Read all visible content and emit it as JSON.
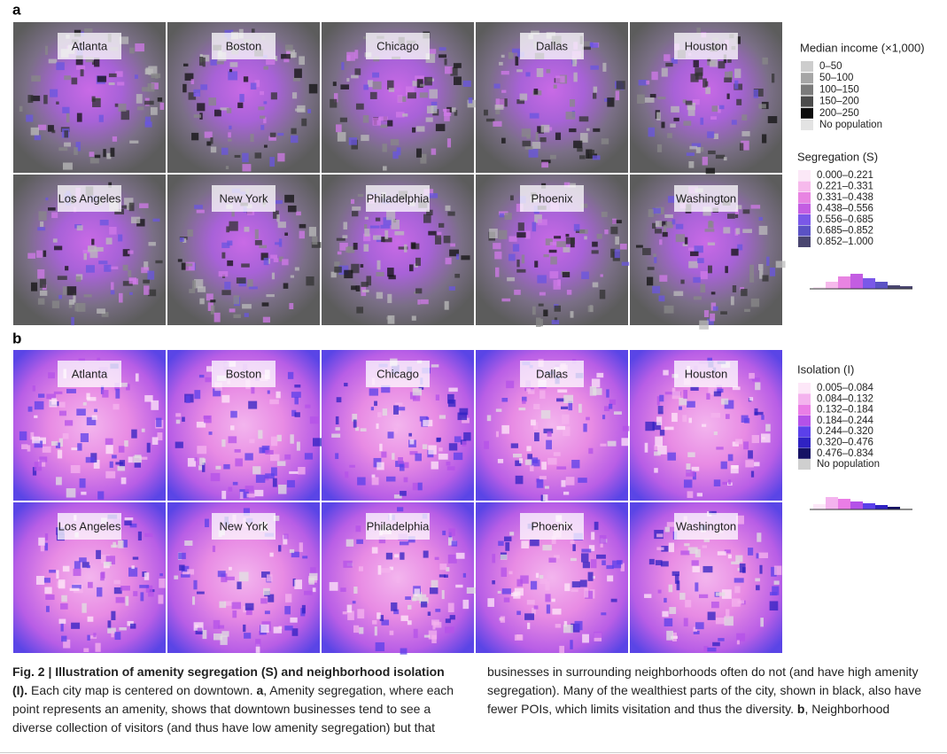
{
  "panel_a": {
    "label": "a",
    "cities": [
      "Atlanta",
      "Boston",
      "Chicago",
      "Dallas",
      "Houston",
      "Los Angeles",
      "New York",
      "Philadelphia",
      "Phoenix",
      "Washington"
    ],
    "income_legend": {
      "title": "Median income (×1,000)",
      "items": [
        {
          "label": "0–50",
          "color": "#cdcdcd"
        },
        {
          "label": "50–100",
          "color": "#a6a6a6"
        },
        {
          "label": "100–150",
          "color": "#7b7b7b"
        },
        {
          "label": "150–200",
          "color": "#4b4b4b"
        },
        {
          "label": "200–250",
          "color": "#0d0d0d"
        },
        {
          "label": "No population",
          "color": "#e3e3e3"
        }
      ]
    },
    "segregation_legend": {
      "title": "Segregation (S)",
      "items": [
        {
          "label": "0.000–0.221",
          "color": "#fbe8f7"
        },
        {
          "label": "0.221–0.331",
          "color": "#f6b9ec"
        },
        {
          "label": "0.331–0.438",
          "color": "#e884e2"
        },
        {
          "label": "0.438–0.556",
          "color": "#c35de2"
        },
        {
          "label": "0.556–0.685",
          "color": "#7a58e8"
        },
        {
          "label": "0.685–0.852",
          "color": "#5b52c4"
        },
        {
          "label": "0.852–1.000",
          "color": "#4a4670"
        }
      ]
    }
  },
  "panel_b": {
    "label": "b",
    "cities": [
      "Atlanta",
      "Boston",
      "Chicago",
      "Dallas",
      "Houston",
      "Los Angeles",
      "New York",
      "Philadelphia",
      "Phoenix",
      "Washington"
    ],
    "isolation_legend": {
      "title": "Isolation (I)",
      "items": [
        {
          "label": "0.005–0.084",
          "color": "#fde7f8"
        },
        {
          "label": "0.084–0.132",
          "color": "#f4b3ee"
        },
        {
          "label": "0.132–0.184",
          "color": "#ea7de6"
        },
        {
          "label": "0.184–0.244",
          "color": "#b451e8"
        },
        {
          "label": "0.244–0.320",
          "color": "#5b40ea"
        },
        {
          "label": "0.320–0.476",
          "color": "#2f22c2"
        },
        {
          "label": "0.476–0.834",
          "color": "#161264"
        },
        {
          "label": "No population",
          "color": "#cfcfcf"
        }
      ]
    }
  },
  "caption": {
    "title": "Fig. 2 | Illustration of amenity segregation (S) and neighborhood isolation (I).",
    "intro": " Each city map is centered on downtown. ",
    "part_a_label": "a",
    "part_a_text": ", Amenity segregation, where each point represents an amenity, shows that downtown businesses tend to see a diverse collection of visitors (and thus have low amenity segregation) but that businesses in surrounding neighborhoods often do not (and have high amenity segregation). Many of the wealthiest parts of the city, shown in black, also have fewer POIs, which limits visitation and thus the diversity. ",
    "part_b_label": "b",
    "part_b_text": ", Neighborhood isolation is strong in those same wealthy areas with fewer amenities and also in areas with segregated amenities."
  }
}
